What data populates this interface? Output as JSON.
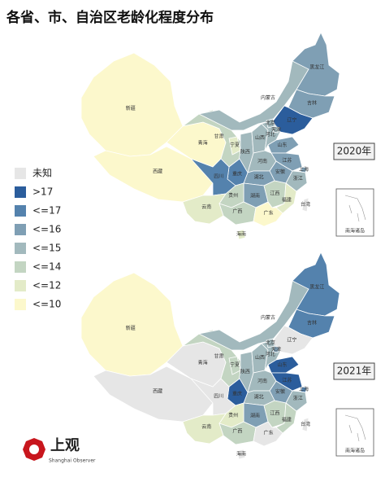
{
  "title": "各省、市、自治区老龄化程度分布",
  "legend": [
    {
      "label": "未知",
      "color": "#e6e6e6"
    },
    {
      "label": ">17",
      "color": "#2b5d9c"
    },
    {
      "label": "<=17",
      "color": "#5482ad"
    },
    {
      "label": "<=16",
      "color": "#7f9fb4"
    },
    {
      "label": "<=15",
      "color": "#a2b9bd"
    },
    {
      "label": "<=14",
      "color": "#c3d5c2"
    },
    {
      "label": "<=12",
      "color": "#e3ebc8"
    },
    {
      "label": "<=10",
      "color": "#fcf8cc"
    }
  ],
  "maps": [
    {
      "year_label": "2020年",
      "regions": [
        {
          "name": "新疆",
          "color": "#fcf8cc"
        },
        {
          "name": "西藏",
          "color": "#fcf8cc"
        },
        {
          "name": "青海",
          "color": "#fcf8cc"
        },
        {
          "name": "甘肃",
          "color": "#c3d5c2"
        },
        {
          "name": "内蒙古",
          "color": "#a2b9bd"
        },
        {
          "name": "黑龙江",
          "color": "#7f9fb4"
        },
        {
          "name": "吉林",
          "color": "#7f9fb4"
        },
        {
          "name": "辽宁",
          "color": "#2b5d9c"
        },
        {
          "name": "宁夏",
          "color": "#e3ebc8"
        },
        {
          "name": "陕西",
          "color": "#a2b9bd"
        },
        {
          "name": "山西",
          "color": "#a2b9bd"
        },
        {
          "name": "河北",
          "color": "#a2b9bd"
        },
        {
          "name": "北京",
          "color": "#a2b9bd"
        },
        {
          "name": "天津",
          "color": "#a2b9bd"
        },
        {
          "name": "山东",
          "color": "#7f9fb4"
        },
        {
          "name": "河南",
          "color": "#a2b9bd"
        },
        {
          "name": "江苏",
          "color": "#7f9fb4"
        },
        {
          "name": "安徽",
          "color": "#7f9fb4"
        },
        {
          "name": "上海",
          "color": "#7f9fb4"
        },
        {
          "name": "浙江",
          "color": "#a2b9bd"
        },
        {
          "name": "湖北",
          "color": "#7f9fb4"
        },
        {
          "name": "重庆",
          "color": "#5482ad"
        },
        {
          "name": "四川",
          "color": "#5482ad"
        },
        {
          "name": "湖南",
          "color": "#7f9fb4"
        },
        {
          "name": "江西",
          "color": "#c3d5c2"
        },
        {
          "name": "福建",
          "color": "#e3ebc8"
        },
        {
          "name": "贵州",
          "color": "#c3d5c2"
        },
        {
          "name": "云南",
          "color": "#e3ebc8"
        },
        {
          "name": "广西",
          "color": "#c3d5c2"
        },
        {
          "name": "广东",
          "color": "#fcf8cc"
        },
        {
          "name": "海南",
          "color": "#e3ebc8"
        },
        {
          "name": "台湾",
          "color": "#e6e6e6"
        }
      ]
    },
    {
      "year_label": "2021年",
      "regions": [
        {
          "name": "新疆",
          "color": "#fcf8cc"
        },
        {
          "name": "西藏",
          "color": "#e6e6e6"
        },
        {
          "name": "青海",
          "color": "#e6e6e6"
        },
        {
          "name": "甘肃",
          "color": "#c3d5c2"
        },
        {
          "name": "内蒙古",
          "color": "#a2b9bd"
        },
        {
          "name": "黑龙江",
          "color": "#5482ad"
        },
        {
          "name": "吉林",
          "color": "#5482ad"
        },
        {
          "name": "辽宁",
          "color": "#e6e6e6"
        },
        {
          "name": "宁夏",
          "color": "#c3d5c2"
        },
        {
          "name": "陕西",
          "color": "#a2b9bd"
        },
        {
          "name": "山西",
          "color": "#a2b9bd"
        },
        {
          "name": "河北",
          "color": "#a2b9bd"
        },
        {
          "name": "北京",
          "color": "#a2b9bd"
        },
        {
          "name": "天津",
          "color": "#7f9fb4"
        },
        {
          "name": "山东",
          "color": "#2b5d9c"
        },
        {
          "name": "河南",
          "color": "#a2b9bd"
        },
        {
          "name": "江苏",
          "color": "#2b5d9c"
        },
        {
          "name": "安徽",
          "color": "#7f9fb4"
        },
        {
          "name": "上海",
          "color": "#5482ad"
        },
        {
          "name": "浙江",
          "color": "#a2b9bd"
        },
        {
          "name": "湖北",
          "color": "#a2b9bd"
        },
        {
          "name": "重庆",
          "color": "#2b5d9c"
        },
        {
          "name": "四川",
          "color": "#e6e6e6"
        },
        {
          "name": "湖南",
          "color": "#7f9fb4"
        },
        {
          "name": "江西",
          "color": "#c3d5c2"
        },
        {
          "name": "福建",
          "color": "#c3d5c2"
        },
        {
          "name": "贵州",
          "color": "#e3ebc8"
        },
        {
          "name": "云南",
          "color": "#e3ebc8"
        },
        {
          "name": "广西",
          "color": "#c3d5c2"
        },
        {
          "name": "广东",
          "color": "#e6e6e6"
        },
        {
          "name": "海南",
          "color": "#e6e6e6"
        },
        {
          "name": "台湾",
          "color": "#e6e6e6"
        }
      ]
    }
  ],
  "inset_label": "南海诸岛",
  "logo": {
    "name": "上观",
    "subtitle": "Shanghai Observer"
  }
}
